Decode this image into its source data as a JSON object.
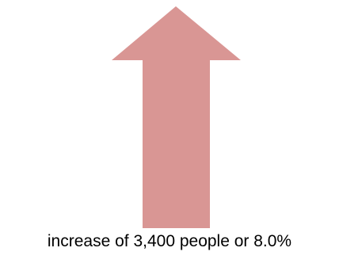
{
  "arrow": {
    "icon": "up-arrow-icon",
    "color": "#d99694"
  },
  "caption": {
    "text": "increase of 3,400 people or 8.0%"
  }
}
